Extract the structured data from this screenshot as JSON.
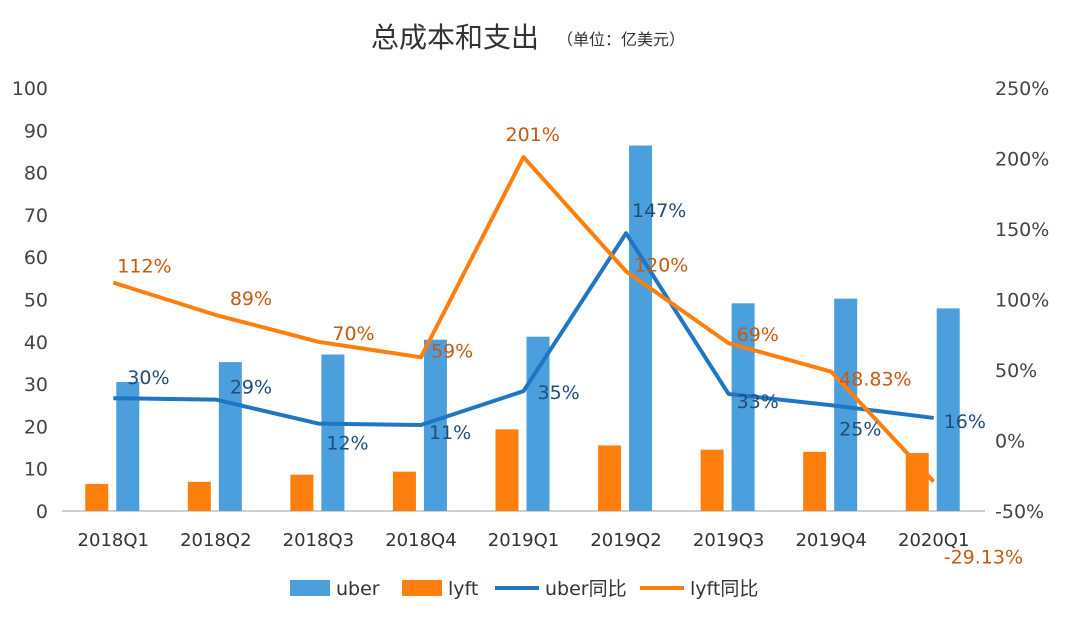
{
  "chart_data": {
    "type": "bar",
    "title": "总成本和支出",
    "subtitle": "（单位：亿美元）",
    "categories": [
      "2018Q1",
      "2018Q2",
      "2018Q3",
      "2018Q4",
      "2019Q1",
      "2019Q2",
      "2019Q3",
      "2019Q4",
      "2020Q1"
    ],
    "series": [
      {
        "name": "uber",
        "kind": "bar",
        "axis": "left",
        "color": "#4a9fdc",
        "values": [
          30.5,
          35.2,
          37.0,
          40.5,
          41.2,
          86.4,
          49.1,
          50.2,
          47.9
        ]
      },
      {
        "name": "lyft",
        "kind": "bar",
        "axis": "left",
        "color": "#ff7f0e",
        "values": [
          6.4,
          6.9,
          8.6,
          9.3,
          19.3,
          15.5,
          14.5,
          14.0,
          13.7
        ]
      },
      {
        "name": "uber同比",
        "kind": "line",
        "axis": "right",
        "color": "#1f77c4",
        "values": [
          30,
          29,
          12,
          11,
          35,
          147,
          33,
          25,
          16
        ],
        "labels": [
          "30%",
          "29%",
          "12%",
          "11%",
          "35%",
          "147%",
          "33%",
          "25%",
          "16%"
        ]
      },
      {
        "name": "lyft同比",
        "kind": "line",
        "axis": "right",
        "color": "#ff7f0e",
        "values": [
          112,
          89,
          70,
          59,
          201,
          120,
          69,
          48.83,
          -29.13
        ],
        "labels": [
          "112%",
          "89%",
          "70%",
          "59%",
          "201%",
          "120%",
          "69%",
          "48.83%",
          "-29.13%"
        ]
      }
    ],
    "y_left": {
      "ylim": [
        0,
        100
      ],
      "ticks": [
        0,
        10,
        20,
        30,
        40,
        50,
        60,
        70,
        80,
        90,
        100
      ]
    },
    "y_right": {
      "ylim": [
        -50,
        250
      ],
      "ticks": [
        -50,
        0,
        50,
        100,
        150,
        200,
        250
      ],
      "tick_labels": [
        "-50%",
        "0%",
        "50%",
        "100%",
        "150%",
        "200%",
        "250%"
      ]
    },
    "grid": false,
    "legend_position": "bottom"
  }
}
